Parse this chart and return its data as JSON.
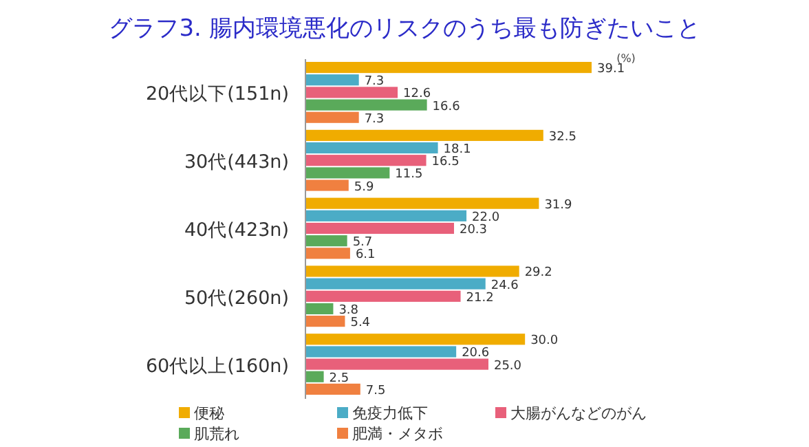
{
  "chart_data": {
    "type": "bar",
    "orientation": "horizontal",
    "title": "グラフ3. 腸内環境悪化のリスクのうち最も防ぎたいこと",
    "annotations": [
      "(%)"
    ],
    "categories": [
      "20代以下(151n)",
      "30代(443n)",
      "40代(423n)",
      "50代(260n)",
      "60代以上(160n)"
    ],
    "series": [
      {
        "name": "便秘",
        "color": "#f0ac00",
        "values": [
          39.1,
          32.5,
          31.9,
          29.2,
          30.0
        ],
        "value_labels": [
          "39.1",
          "32.5",
          "31.9",
          "29.2",
          "30.0"
        ]
      },
      {
        "name": "免疫力低下",
        "color": "#4bacc6",
        "values": [
          7.3,
          18.1,
          22.0,
          24.6,
          20.6
        ],
        "value_labels": [
          "7.3",
          "18.1",
          "22.0",
          "24.6",
          "20.6"
        ]
      },
      {
        "name": "大腸がんなどのがん",
        "color": "#e8607a",
        "values": [
          12.6,
          16.5,
          20.3,
          21.2,
          25.0
        ],
        "value_labels": [
          "12.6",
          "16.5",
          "20.3",
          "21.2",
          "25.0"
        ]
      },
      {
        "name": "肌荒れ",
        "color": "#5aaa5a",
        "values": [
          16.6,
          11.5,
          5.7,
          3.8,
          2.5
        ],
        "value_labels": [
          "16.6",
          "11.5",
          "5.7",
          "3.8",
          "2.5"
        ]
      },
      {
        "name": "肥満・メタボ",
        "color": "#f08040",
        "values": [
          7.3,
          5.9,
          6.1,
          5.4,
          7.5
        ],
        "value_labels": [
          "7.3",
          "5.9",
          "6.1",
          "5.4",
          "7.5"
        ]
      }
    ],
    "legend": "bottom"
  }
}
